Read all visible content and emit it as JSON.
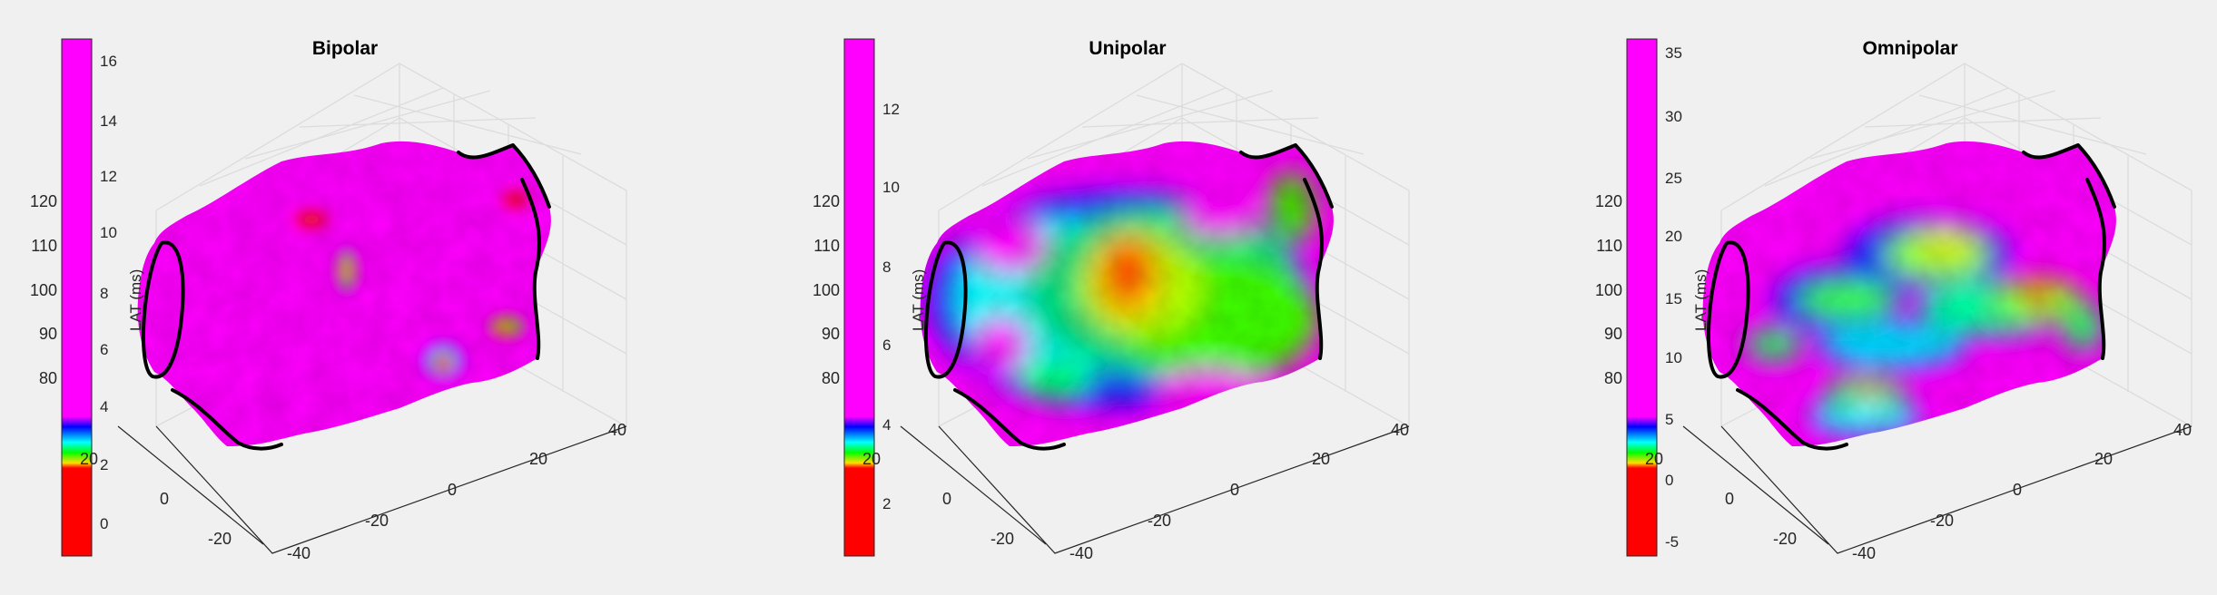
{
  "colors": {
    "background": "#f0f0f0",
    "colormap": [
      "#ff0000",
      "#ffff00",
      "#00ff00",
      "#00ffff",
      "#0000ff",
      "#ff00ff"
    ],
    "surface_base": "#ff00ff",
    "rim": "#000000"
  },
  "panels": [
    {
      "title": "Bipolar",
      "colorbar": {
        "ticks": [
          "16",
          "14",
          "12",
          "10",
          "8",
          "6",
          "4",
          "2",
          "0"
        ]
      },
      "z_axis": {
        "label": "LAT (ms)",
        "ticks": [
          "120",
          "110",
          "100",
          "90",
          "80"
        ]
      },
      "y_axis": {
        "ticks": [
          "20",
          "0",
          "-20"
        ]
      },
      "x_axis": {
        "ticks": [
          "-40",
          "-20",
          "0",
          "20",
          "40"
        ]
      }
    },
    {
      "title": "Unipolar",
      "colorbar": {
        "ticks": [
          "12",
          "10",
          "8",
          "6",
          "4",
          "2"
        ]
      },
      "z_axis": {
        "label": "LAT (ms)",
        "ticks": [
          "120",
          "110",
          "100",
          "90",
          "80"
        ]
      },
      "y_axis": {
        "ticks": [
          "20",
          "0",
          "-20"
        ]
      },
      "x_axis": {
        "ticks": [
          "-40",
          "-20",
          "0",
          "20",
          "40"
        ]
      }
    },
    {
      "title": "Omnipolar",
      "colorbar": {
        "ticks": [
          "35",
          "30",
          "25",
          "20",
          "15",
          "10",
          "5",
          "0",
          "-5"
        ]
      },
      "z_axis": {
        "label": "LAT (ms)",
        "ticks": [
          "120",
          "110",
          "100",
          "90",
          "80"
        ]
      },
      "y_axis": {
        "ticks": [
          "20",
          "0",
          "-20"
        ]
      },
      "x_axis": {
        "ticks": [
          "-40",
          "-20",
          "0",
          "20",
          "40"
        ]
      }
    }
  ]
}
